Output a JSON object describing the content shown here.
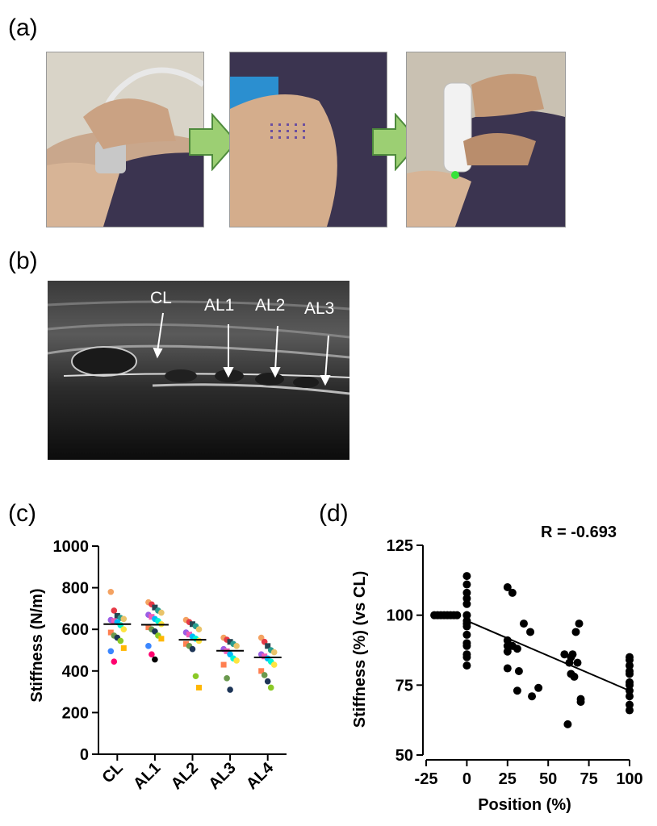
{
  "panels": {
    "a": "(a)",
    "b": "(b)",
    "c": "(c)",
    "d": "(d)"
  },
  "photos": {
    "one": "probe on neck (photo)",
    "two": "marked skin points (photo)",
    "three": "handheld stiffness device (photo)"
  },
  "ultrasound": {
    "labels": [
      "CL",
      "AL1",
      "AL2",
      "AL3"
    ]
  },
  "chart_data": [
    {
      "type": "scatter",
      "ylabel": "Stiffness (N/m)",
      "xlabel": "",
      "categories": [
        "CL",
        "AL1",
        "AL2",
        "AL3",
        "AL4"
      ],
      "ylim": [
        0,
        1000
      ],
      "yticks": [
        0,
        200,
        400,
        600,
        800,
        1000
      ],
      "means": [
        625,
        622,
        550,
        497,
        465
      ],
      "points": [
        [
          780,
          690,
          665,
          655,
          650,
          645,
          640,
          635,
          620,
          600,
          585,
          570,
          560,
          545,
          510,
          495,
          445
        ],
        [
          730,
          720,
          705,
          690,
          680,
          670,
          660,
          650,
          640,
          625,
          610,
          600,
          590,
          570,
          555,
          520,
          480,
          455
        ],
        [
          645,
          635,
          625,
          615,
          600,
          585,
          575,
          565,
          555,
          545,
          530,
          520,
          505,
          375,
          320
        ],
        [
          560,
          550,
          540,
          530,
          520,
          505,
          495,
          480,
          460,
          450,
          430,
          365,
          310
        ],
        [
          560,
          540,
          520,
          500,
          490,
          480,
          470,
          460,
          445,
          430,
          400,
          380,
          350,
          320
        ]
      ],
      "point_colors": [
        "#f4a261",
        "#e63946",
        "#264653",
        "#2a9d8f",
        "#e9c46a",
        "#9b5de5",
        "#f15bb5",
        "#00bbf9",
        "#00f5d4",
        "#fee440",
        "#ff7f50",
        "#6a994e",
        "#1d3557",
        "#8ac926",
        "#ffb703",
        "#3a86ff",
        "#ff006e",
        "#000000"
      ]
    },
    {
      "type": "scatter",
      "xlabel": "Position (%)",
      "ylabel": "Stiffness (%) (vs CL)",
      "annotation": "R = -0.693",
      "xlim": [
        -25,
        100
      ],
      "ylim": [
        50,
        125
      ],
      "xticks": [
        -25,
        0,
        25,
        50,
        75,
        100
      ],
      "yticks": [
        50,
        75,
        100,
        125
      ],
      "fit_line": {
        "x": [
          0,
          100
        ],
        "y": [
          98,
          73
        ]
      },
      "x": [
        -20,
        -18,
        -16,
        -14,
        -12,
        -10,
        -8,
        -6,
        0,
        0,
        0,
        0,
        0,
        0,
        0,
        0,
        0,
        0,
        0,
        0,
        0,
        0,
        0,
        0,
        25,
        25,
        25,
        25,
        25,
        28,
        28,
        31,
        31,
        32,
        35,
        39,
        40,
        44,
        60,
        62,
        63,
        64,
        64,
        65,
        66,
        67,
        68,
        69,
        70,
        70,
        100,
        100,
        100,
        100,
        100,
        100,
        100,
        100,
        100,
        100,
        100
      ],
      "y": [
        100,
        100,
        100,
        100,
        100,
        100,
        100,
        100,
        114,
        111,
        108,
        106,
        104,
        100,
        98,
        96,
        93,
        90,
        89,
        86,
        85,
        82,
        100,
        97,
        110,
        91,
        89,
        87,
        81,
        89,
        108,
        88,
        73,
        80,
        97,
        94,
        71,
        74,
        86,
        61,
        83,
        85,
        79,
        86,
        78,
        94,
        83,
        97,
        70,
        69,
        85,
        84,
        82,
        80,
        79,
        76,
        75,
        73,
        71,
        68,
        66
      ]
    }
  ]
}
